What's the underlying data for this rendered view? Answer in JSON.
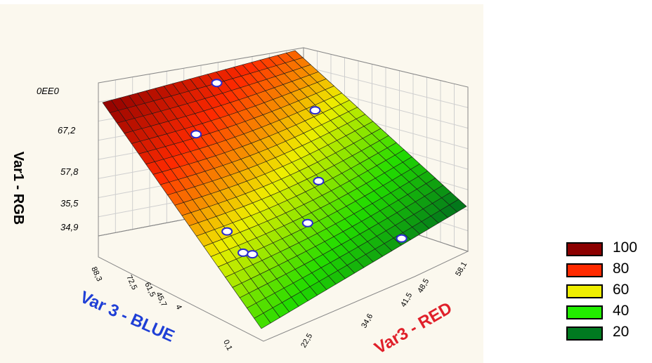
{
  "chart_data": {
    "type": "surface",
    "zlabel": "Var1 - RGB",
    "xlabel": "Var3 - RED",
    "ylabel": "Var 3 - BLUE",
    "z_ticks": [
      "0EE0",
      "67,2",
      "57,8",
      "35,5",
      "34,9"
    ],
    "x_ticks": [
      "22,5",
      "34,6",
      "41,5",
      "48,5",
      "58,1"
    ],
    "y_ticks": [
      "0,1",
      "4",
      "45,7",
      "61,5",
      "72,5",
      "88,3"
    ],
    "legend": [
      {
        "label": "100",
        "color": "#8b0000"
      },
      {
        "label": "80",
        "color": "#ff2a00"
      },
      {
        "label": "60",
        "color": "#eeee00"
      },
      {
        "label": "40",
        "color": "#22ee00"
      },
      {
        "label": "20",
        "color": "#007a20"
      }
    ],
    "grid": true,
    "legend_placement": "bottom-right",
    "points_count_hint": null
  }
}
